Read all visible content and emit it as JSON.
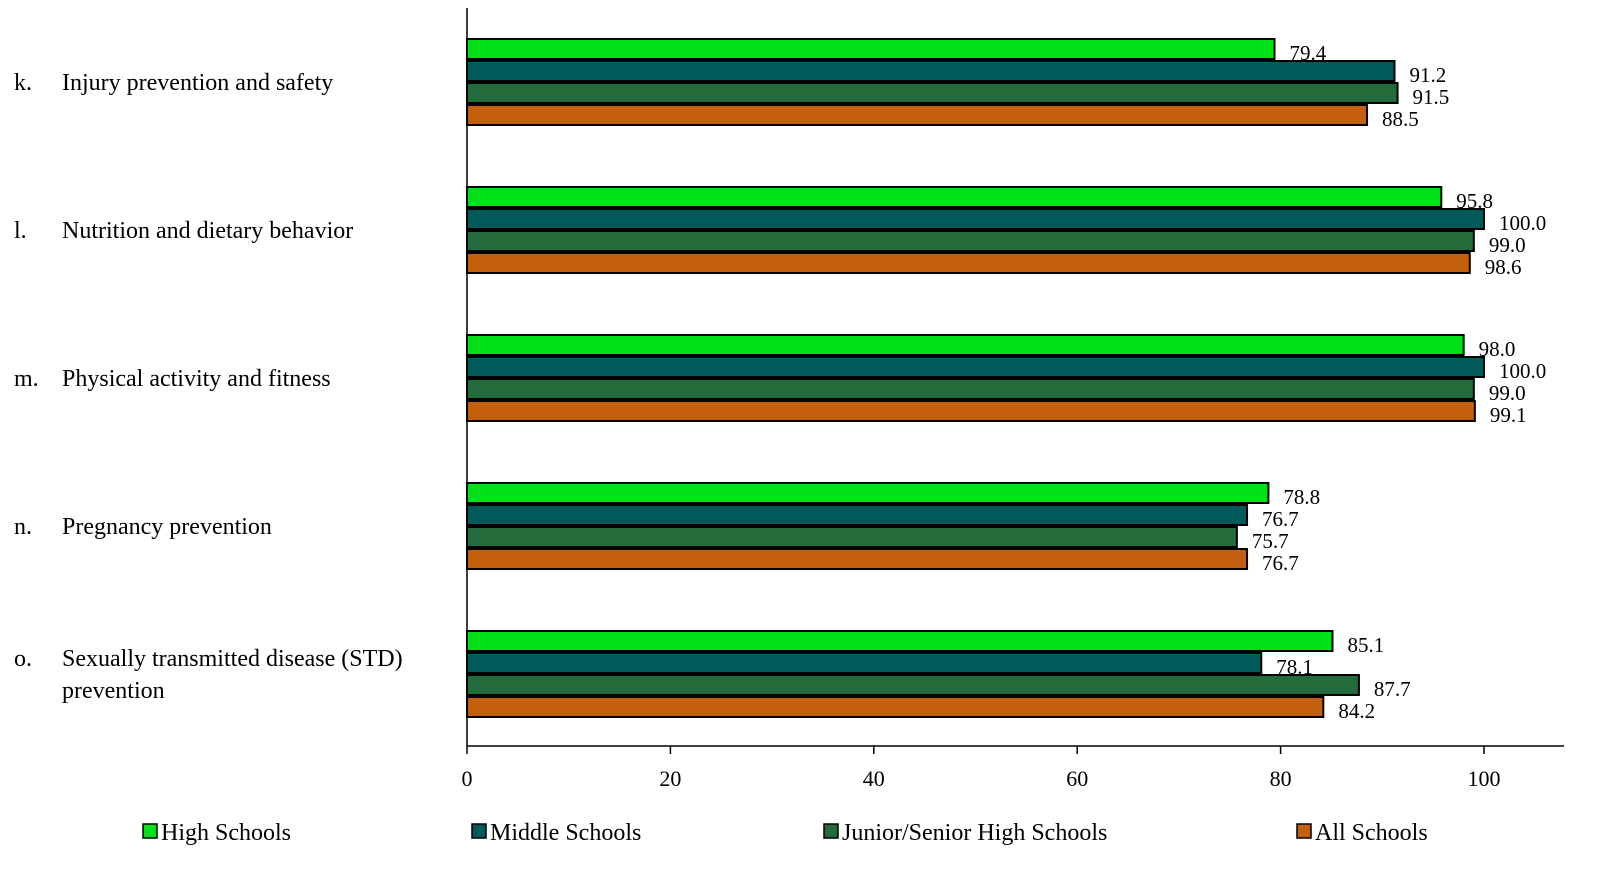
{
  "chart_data": {
    "type": "bar",
    "orientation": "horizontal",
    "categories": [
      {
        "letter": "k.",
        "lines": [
          "Injury prevention and safety"
        ]
      },
      {
        "letter": "l.",
        "lines": [
          "Nutrition and dietary behavior"
        ]
      },
      {
        "letter": "m.",
        "lines": [
          "Physical activity and fitness"
        ]
      },
      {
        "letter": "n.",
        "lines": [
          "Pregnancy prevention"
        ]
      },
      {
        "letter": "o.",
        "lines": [
          "Sexually transmitted disease (STD)",
          "prevention"
        ]
      }
    ],
    "series": [
      {
        "name": "High Schools",
        "color": "#00e11a",
        "values": [
          79.4,
          95.8,
          98.0,
          78.8,
          85.1
        ],
        "labels": [
          "79.4",
          "95.8",
          "98.0",
          "78.8",
          "85.1"
        ]
      },
      {
        "name": "Middle Schools",
        "color": "#005a5a",
        "values": [
          91.2,
          100.0,
          100.0,
          76.7,
          78.1
        ],
        "labels": [
          "91.2",
          "100.0",
          "100.0",
          "76.7",
          "78.1"
        ]
      },
      {
        "name": "Junior/Senior High Schools",
        "color": "#236b3a",
        "values": [
          91.5,
          99.0,
          99.0,
          75.7,
          87.7
        ],
        "labels": [
          "91.5",
          "99.0",
          "99.0",
          "75.7",
          "87.7"
        ]
      },
      {
        "name": "All Schools",
        "color": "#c4600d",
        "values": [
          88.5,
          98.6,
          99.1,
          76.7,
          84.2
        ],
        "labels": [
          "88.5",
          "98.6",
          "99.1",
          "76.7",
          "84.2"
        ]
      }
    ],
    "xlim": [
      0,
      100
    ],
    "xticks": [
      {
        "value": 0,
        "label": "0"
      },
      {
        "value": 20,
        "label": "20"
      },
      {
        "value": 40,
        "label": "40"
      },
      {
        "value": 60,
        "label": "60"
      },
      {
        "value": 80,
        "label": "80"
      },
      {
        "value": 100,
        "label": "100"
      }
    ],
    "grid": false,
    "legend_position": "bottom"
  }
}
